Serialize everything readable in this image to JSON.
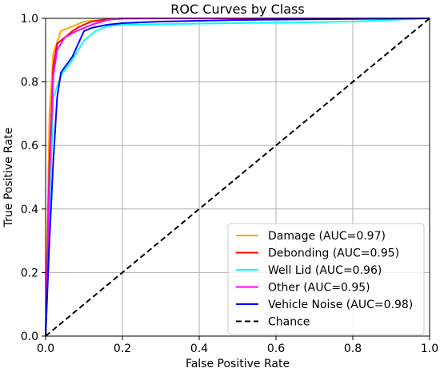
{
  "chart_data": {
    "type": "line",
    "title": "ROC Curves by Class",
    "xlabel": "False Positive Rate",
    "ylabel": "True Positive Rate",
    "xlim": [
      0,
      1
    ],
    "ylim": [
      0,
      1
    ],
    "xticks": [
      "0.0",
      "0.2",
      "0.4",
      "0.6",
      "0.8",
      "1.0"
    ],
    "yticks": [
      "0.0",
      "0.2",
      "0.4",
      "0.6",
      "0.8",
      "1.0"
    ],
    "grid": true,
    "legend_position": "bottom-right",
    "series": [
      {
        "name": "Damage (AUC=0.97)",
        "color": "#FFA500",
        "x": [
          0,
          0.01,
          0.02,
          0.04,
          0.06,
          0.08,
          0.1,
          0.14,
          0.2,
          0.3,
          0.5,
          1.0
        ],
        "y": [
          0,
          0.7,
          0.89,
          0.96,
          0.97,
          0.98,
          0.99,
          0.995,
          0.998,
          1.0,
          1.0,
          1.0
        ]
      },
      {
        "name": "Debonding (AUC=0.95)",
        "color": "#FF0000",
        "x": [
          0,
          0.01,
          0.02,
          0.03,
          0.05,
          0.07,
          0.09,
          0.12,
          0.16,
          0.2,
          0.3,
          1.0
        ],
        "y": [
          0,
          0.55,
          0.85,
          0.92,
          0.94,
          0.96,
          0.975,
          0.99,
          0.997,
          1.0,
          1.0,
          1.0
        ]
      },
      {
        "name": "Well Lid (AUC=0.96)",
        "color": "#00FFFF",
        "x": [
          0,
          0.02,
          0.04,
          0.07,
          0.1,
          0.13,
          0.16,
          0.2,
          0.3,
          0.5,
          0.8,
          1.0
        ],
        "y": [
          0,
          0.75,
          0.82,
          0.87,
          0.93,
          0.96,
          0.975,
          0.98,
          0.982,
          0.985,
          0.99,
          1.0
        ]
      },
      {
        "name": "Other (AUC=0.95)",
        "color": "#FF00FF",
        "x": [
          0,
          0.01,
          0.02,
          0.03,
          0.05,
          0.08,
          0.12,
          0.16,
          0.2,
          0.3,
          1.0
        ],
        "y": [
          0,
          0.5,
          0.82,
          0.9,
          0.94,
          0.96,
          0.98,
          0.995,
          1.0,
          1.0,
          1.0
        ]
      },
      {
        "name": "Vehicle Noise (AUC=0.98)",
        "color": "#0000FF",
        "x": [
          0,
          0.01,
          0.02,
          0.03,
          0.04,
          0.07,
          0.1,
          0.12,
          0.16,
          0.2,
          0.3,
          0.5,
          1.0
        ],
        "y": [
          0,
          0.3,
          0.55,
          0.75,
          0.83,
          0.88,
          0.96,
          0.97,
          0.98,
          0.985,
          0.99,
          0.995,
          1.0
        ]
      }
    ],
    "chance": {
      "name": "Chance",
      "color": "#000000",
      "x": [
        0,
        1
      ],
      "y": [
        0,
        1
      ]
    }
  }
}
